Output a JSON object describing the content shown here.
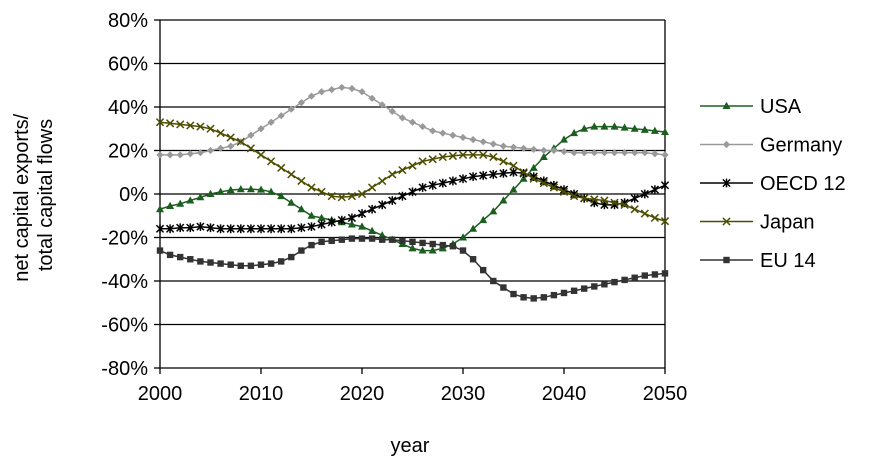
{
  "chart_data": {
    "type": "line",
    "title": "",
    "xlabel": "year",
    "ylabel": "net capital exports/ total capital flows",
    "ylabel_lines": [
      "net capital exports/",
      "total capital flows"
    ],
    "xlim": [
      2000,
      2050
    ],
    "ylim": [
      -0.8,
      0.8
    ],
    "x_ticks": [
      2000,
      2010,
      2020,
      2030,
      2040,
      2050
    ],
    "x_tick_labels": [
      "2000",
      "2010",
      "2020",
      "2030",
      "2040",
      "2050"
    ],
    "y_ticks": [
      0.8,
      0.6,
      0.4,
      0.2,
      0,
      -0.2,
      -0.4,
      -0.6,
      -0.8
    ],
    "y_tick_labels": [
      "80%",
      "60%",
      "40%",
      "20%",
      "0%",
      "-20%",
      "-40%",
      "-60%",
      "-80%"
    ],
    "grid": "horizontal",
    "legend_position": "right",
    "x": [
      2000,
      2001,
      2002,
      2003,
      2004,
      2005,
      2006,
      2007,
      2008,
      2009,
      2010,
      2011,
      2012,
      2013,
      2014,
      2015,
      2016,
      2017,
      2018,
      2019,
      2020,
      2021,
      2022,
      2023,
      2024,
      2025,
      2026,
      2027,
      2028,
      2029,
      2030,
      2031,
      2032,
      2033,
      2034,
      2035,
      2036,
      2037,
      2038,
      2039,
      2040,
      2041,
      2042,
      2043,
      2044,
      2045,
      2046,
      2047,
      2048,
      2049,
      2050
    ],
    "series": [
      {
        "name": "USA",
        "color": "#1b5e20",
        "marker": "triangle",
        "values": [
          -0.07,
          -0.055,
          -0.045,
          -0.03,
          -0.015,
          0.0,
          0.01,
          0.018,
          0.022,
          0.022,
          0.02,
          0.01,
          -0.01,
          -0.04,
          -0.07,
          -0.1,
          -0.11,
          -0.12,
          -0.13,
          -0.14,
          -0.15,
          -0.17,
          -0.19,
          -0.21,
          -0.23,
          -0.25,
          -0.26,
          -0.26,
          -0.25,
          -0.23,
          -0.2,
          -0.16,
          -0.12,
          -0.08,
          -0.03,
          0.02,
          0.07,
          0.12,
          0.17,
          0.21,
          0.25,
          0.28,
          0.3,
          0.31,
          0.31,
          0.31,
          0.305,
          0.3,
          0.295,
          0.29,
          0.285
        ]
      },
      {
        "name": "Germany",
        "color": "#999999",
        "marker": "diamond",
        "values": [
          0.18,
          0.18,
          0.18,
          0.185,
          0.19,
          0.2,
          0.21,
          0.22,
          0.24,
          0.27,
          0.3,
          0.33,
          0.36,
          0.39,
          0.42,
          0.45,
          0.47,
          0.48,
          0.49,
          0.485,
          0.47,
          0.44,
          0.41,
          0.38,
          0.35,
          0.33,
          0.31,
          0.29,
          0.28,
          0.27,
          0.26,
          0.25,
          0.24,
          0.23,
          0.22,
          0.215,
          0.21,
          0.205,
          0.2,
          0.2,
          0.195,
          0.19,
          0.19,
          0.19,
          0.19,
          0.19,
          0.19,
          0.19,
          0.19,
          0.185,
          0.18
        ]
      },
      {
        "name": "OECD 12",
        "color": "#000000",
        "marker": "asterisk",
        "values": [
          -0.16,
          -0.16,
          -0.155,
          -0.155,
          -0.15,
          -0.155,
          -0.16,
          -0.16,
          -0.16,
          -0.16,
          -0.16,
          -0.16,
          -0.16,
          -0.16,
          -0.155,
          -0.15,
          -0.14,
          -0.13,
          -0.12,
          -0.11,
          -0.09,
          -0.07,
          -0.05,
          -0.03,
          -0.01,
          0.01,
          0.03,
          0.04,
          0.05,
          0.06,
          0.07,
          0.08,
          0.085,
          0.09,
          0.095,
          0.1,
          0.095,
          0.08,
          0.06,
          0.04,
          0.02,
          0.0,
          -0.02,
          -0.04,
          -0.05,
          -0.05,
          -0.04,
          -0.02,
          0.0,
          0.02,
          0.04
        ]
      },
      {
        "name": "Japan",
        "color": "#4d4d00",
        "marker": "cross",
        "values": [
          0.33,
          0.325,
          0.32,
          0.315,
          0.31,
          0.3,
          0.28,
          0.26,
          0.24,
          0.21,
          0.18,
          0.15,
          0.12,
          0.09,
          0.06,
          0.03,
          0.01,
          -0.01,
          -0.015,
          -0.01,
          0.0,
          0.03,
          0.06,
          0.09,
          0.11,
          0.13,
          0.15,
          0.16,
          0.17,
          0.175,
          0.18,
          0.18,
          0.18,
          0.17,
          0.15,
          0.13,
          0.1,
          0.07,
          0.05,
          0.03,
          0.01,
          -0.01,
          -0.02,
          -0.025,
          -0.03,
          -0.04,
          -0.05,
          -0.07,
          -0.09,
          -0.11,
          -0.125
        ]
      },
      {
        "name": "EU 14",
        "color": "#333333",
        "marker": "square",
        "values": [
          -0.26,
          -0.28,
          -0.29,
          -0.3,
          -0.31,
          -0.315,
          -0.32,
          -0.325,
          -0.33,
          -0.33,
          -0.325,
          -0.32,
          -0.31,
          -0.29,
          -0.26,
          -0.235,
          -0.22,
          -0.215,
          -0.21,
          -0.205,
          -0.205,
          -0.205,
          -0.21,
          -0.21,
          -0.215,
          -0.22,
          -0.225,
          -0.23,
          -0.235,
          -0.24,
          -0.26,
          -0.3,
          -0.35,
          -0.4,
          -0.43,
          -0.46,
          -0.475,
          -0.48,
          -0.475,
          -0.465,
          -0.455,
          -0.445,
          -0.435,
          -0.425,
          -0.415,
          -0.405,
          -0.395,
          -0.385,
          -0.375,
          -0.37,
          -0.365
        ]
      }
    ]
  }
}
